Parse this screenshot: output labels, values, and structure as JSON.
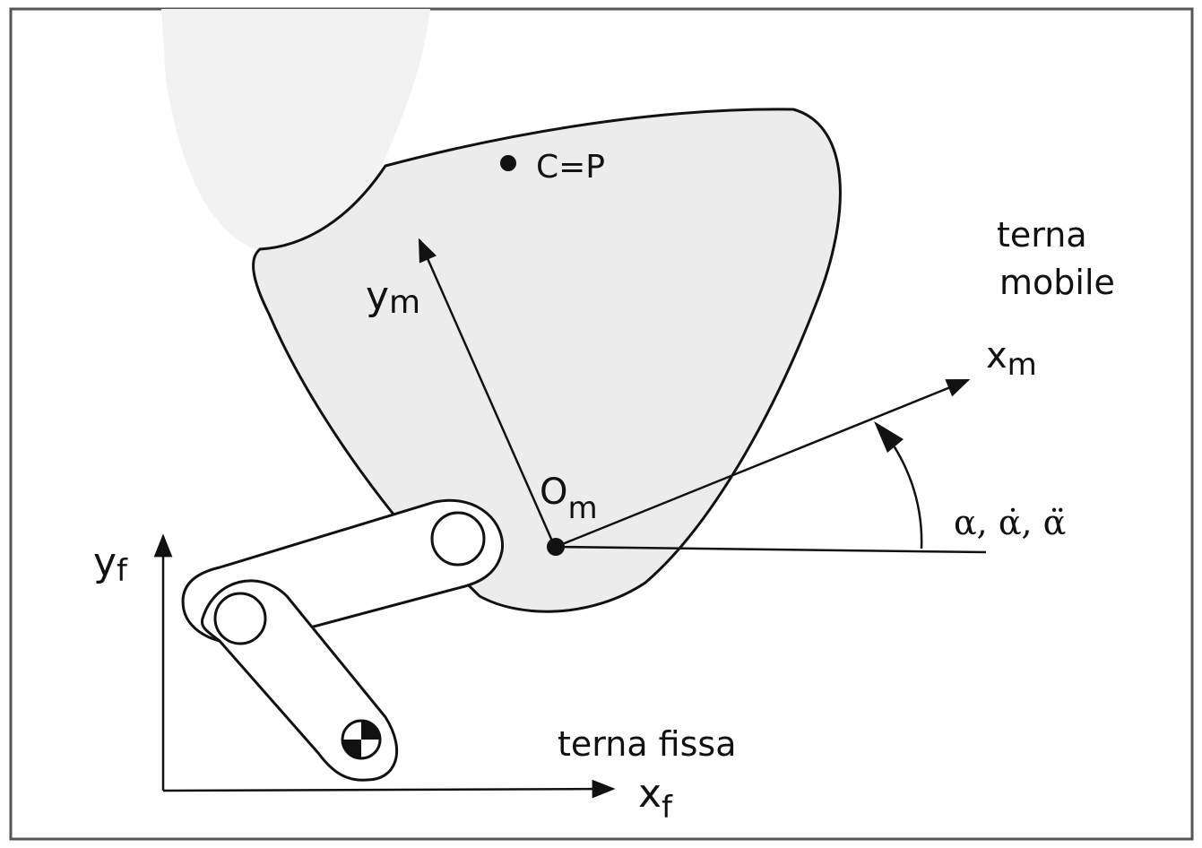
{
  "labels": {
    "point_cp": "C=P",
    "moving_frame_line1": "terna",
    "moving_frame_line2": "mobile",
    "fixed_frame": "terna fissa",
    "ym_main": "y",
    "ym_sub": "m",
    "xm_main": "x",
    "xm_sub": "m",
    "om_main": "O",
    "om_sub": "m",
    "yf_main": "y",
    "yf_sub": "f",
    "xf_main": "x",
    "xf_sub": "f",
    "angle": "α, α̇, α̈"
  },
  "colors": {
    "body_fill": "#ececec",
    "ink": "#111111",
    "frame": "#555555"
  }
}
